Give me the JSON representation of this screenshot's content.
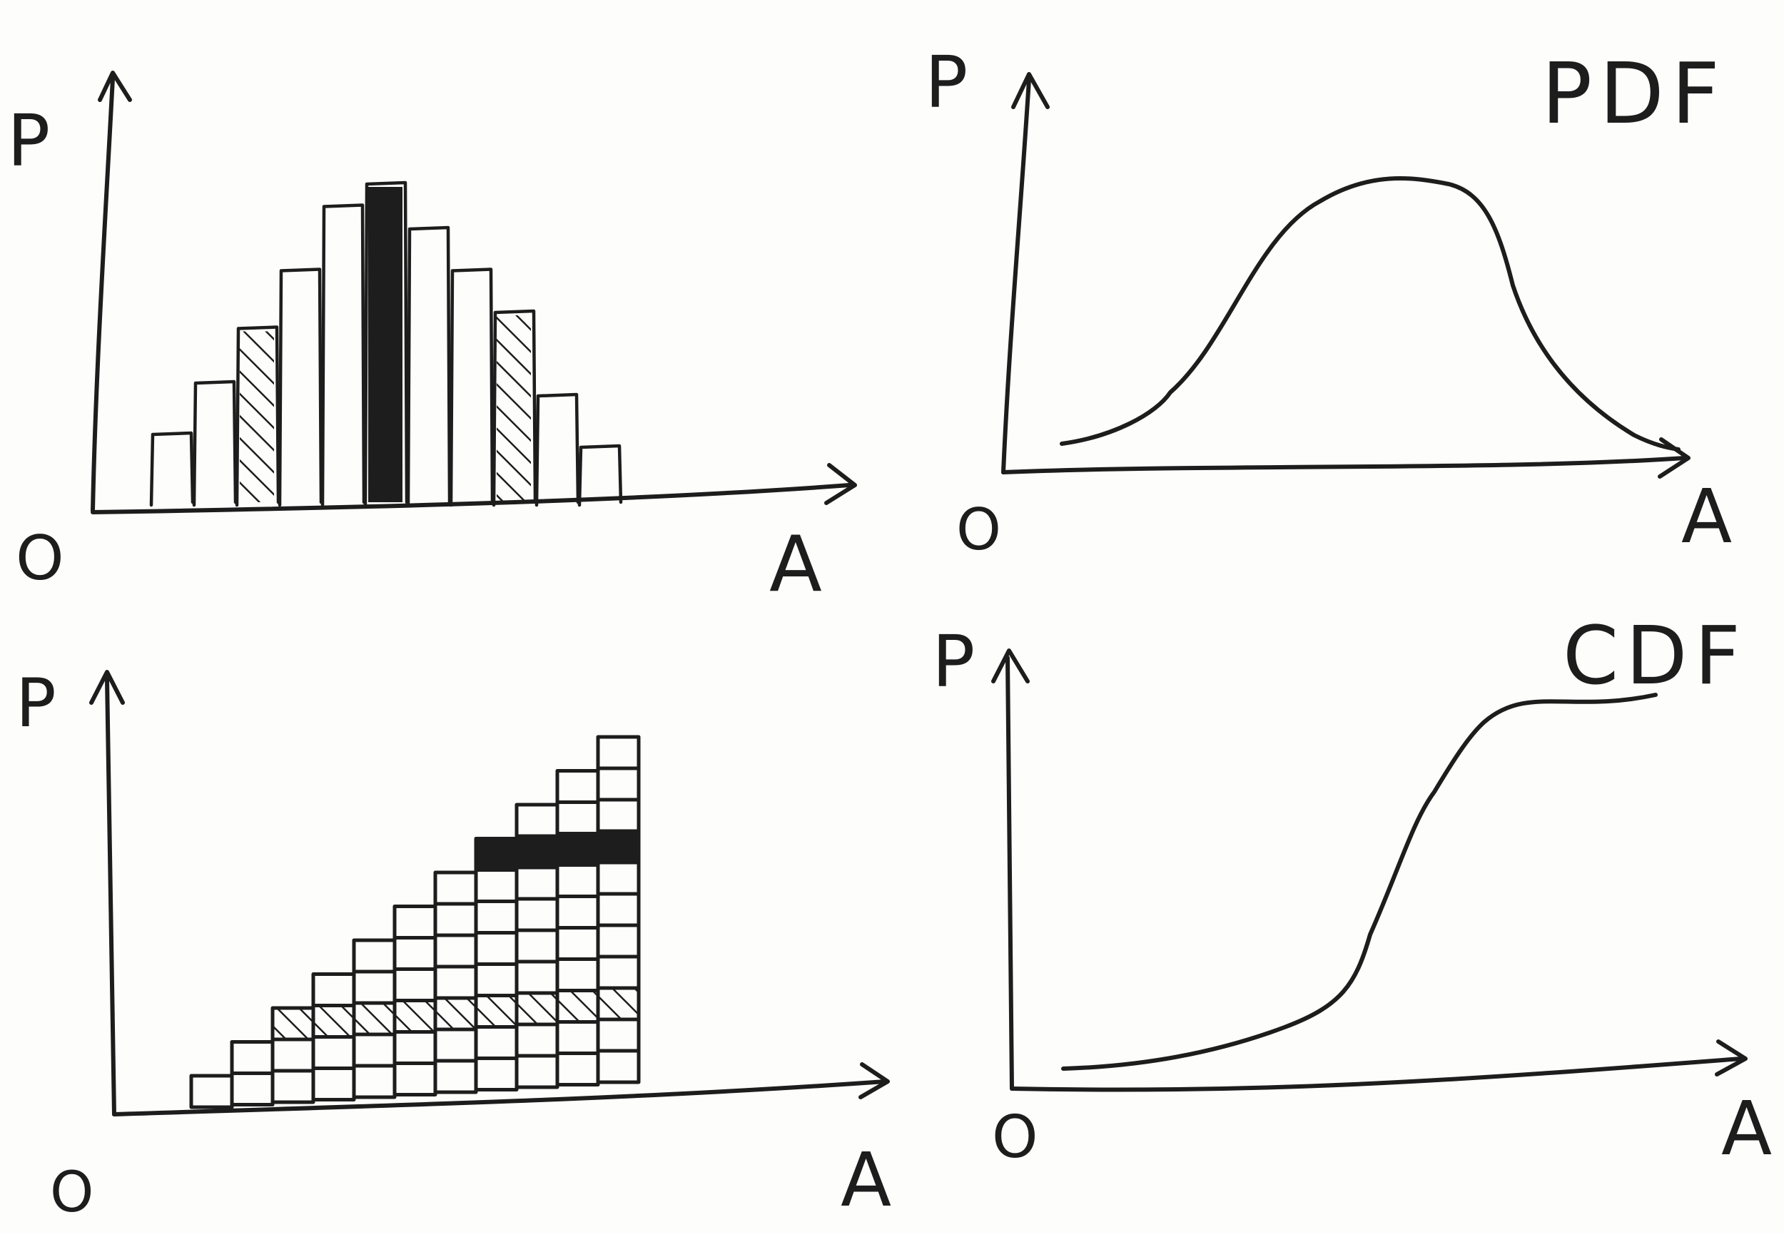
{
  "panels": {
    "top_left": {
      "p_label": "P",
      "origin_label": "O",
      "x_label": "A"
    },
    "top_right": {
      "p_label": "P",
      "origin_label": "O",
      "x_label": "A",
      "title": "PDF"
    },
    "bottom_left": {
      "p_label": "P",
      "origin_label": "O",
      "x_label": "A"
    },
    "bottom_right": {
      "p_label": "P",
      "origin_label": "O",
      "x_label": "A",
      "title": "CDF"
    }
  },
  "histogram": {
    "bar_heights": [
      0.22,
      0.38,
      0.55,
      0.73,
      0.93,
      1.0,
      0.86,
      0.73,
      0.6,
      0.34,
      0.18
    ],
    "hatched_bars": [
      2,
      8
    ],
    "filled_bars": [
      5
    ]
  },
  "stacked": {
    "column_heights": [
      1,
      2,
      3,
      4,
      5,
      6,
      7,
      8,
      9,
      10,
      11
    ],
    "hatched_row": 2,
    "filled_row": 7
  },
  "colors": {
    "ink": "#1d1d1d",
    "paper": "#fdfdfc"
  }
}
